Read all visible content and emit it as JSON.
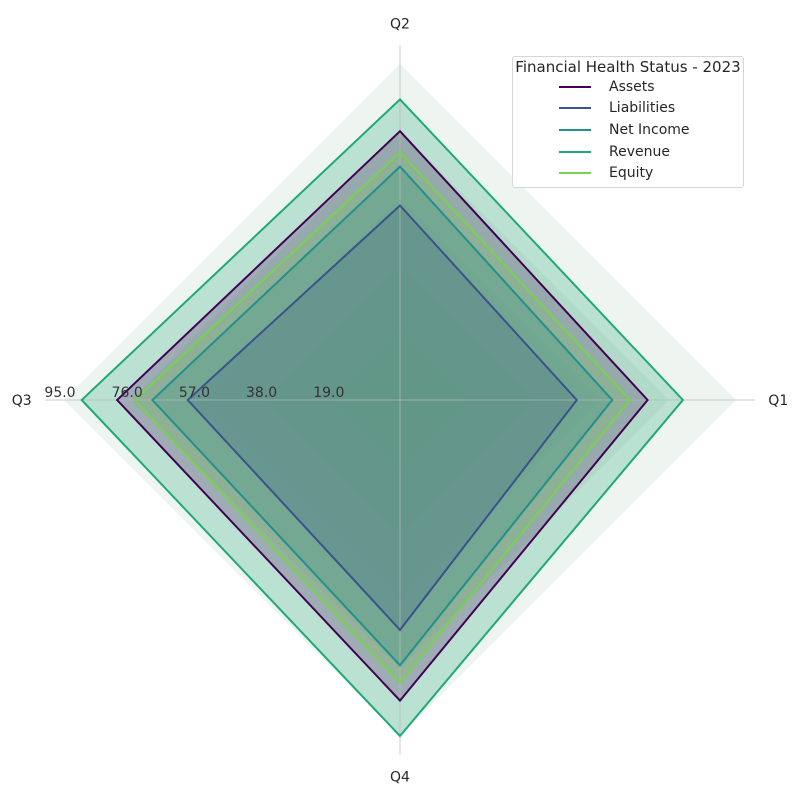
{
  "chart_data": {
    "type": "radar",
    "title": "",
    "categories": [
      "Q1",
      "Q2",
      "Q3",
      "Q4"
    ],
    "rmax": 95,
    "ring_values": [
      19.0,
      38.0,
      57.0,
      76.0,
      95.0
    ],
    "ring_labels": [
      "19.0",
      "38.0",
      "57.0",
      "76.0",
      "95.0"
    ],
    "grid": true,
    "legend": {
      "title": "Financial Health Status - 2023",
      "placement": "top-right"
    },
    "series": [
      {
        "name": "Assets",
        "values": [
          70,
          76,
          80,
          85
        ],
        "color": "#440154"
      },
      {
        "name": "Liabilities",
        "values": [
          50,
          55,
          60,
          65
        ],
        "color": "#3b528b"
      },
      {
        "name": "Net Income",
        "values": [
          60,
          66,
          70,
          75
        ],
        "color": "#21918c"
      },
      {
        "name": "Revenue",
        "values": [
          80,
          85,
          90,
          95
        ],
        "color": "#1fa87a"
      },
      {
        "name": "Equity",
        "values": [
          65,
          70,
          75,
          80
        ],
        "color": "#7ad151"
      }
    ]
  }
}
